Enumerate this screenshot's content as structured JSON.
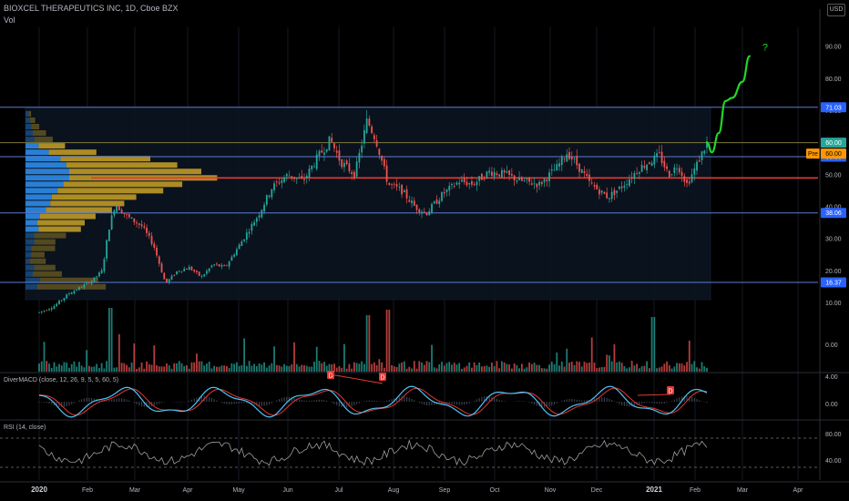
{
  "header": {
    "title": "BIOXCEL THERAPEUTICS INC, 1D, Cboe BZX",
    "vol_label": "Vol",
    "currency": "USD"
  },
  "colors": {
    "background": "#000000",
    "candle_up": "#26a69a",
    "candle_down": "#ef5350",
    "level_line": "#5b7bd5",
    "poc_line": "#e53935",
    "projection": "#22d62a",
    "vp_blue": "#2a7fd4",
    "vp_gold": "#c9a227",
    "macd_line": "#4fc3f7",
    "signal_line": "#e53935",
    "rsi_line": "#9e9e9e"
  },
  "chart_data": {
    "type": "candlestick",
    "title": "BIOXCEL THERAPEUTICS INC, 1D, Cboe BZX",
    "x_ticks": [
      "2020",
      "Feb",
      "Mar",
      "Apr",
      "May",
      "Jun",
      "Jul",
      "Aug",
      "Sep",
      "Oct",
      "Nov",
      "Dec",
      "2021",
      "Feb",
      "Mar",
      "Apr"
    ],
    "price_axis": {
      "ticks": [
        "90.00",
        "80.00",
        "70.00",
        "60.00",
        "50.00",
        "40.00",
        "30.00",
        "20.00",
        "10.00"
      ],
      "ylim": [
        5,
        96
      ]
    },
    "price_path": [
      [
        "2019-12-31",
        7
      ],
      [
        "2020-01-10",
        9
      ],
      [
        "2020-01-20",
        13
      ],
      [
        "2020-01-28",
        15
      ],
      [
        "2020-02-04",
        17
      ],
      [
        "2020-02-10",
        20
      ],
      [
        "2020-02-14",
        33
      ],
      [
        "2020-02-18",
        41
      ],
      [
        "2020-02-25",
        37
      ],
      [
        "2020-03-05",
        34
      ],
      [
        "2020-03-12",
        28
      ],
      [
        "2020-03-19",
        16
      ],
      [
        "2020-03-26",
        20
      ],
      [
        "2020-04-02",
        21
      ],
      [
        "2020-04-09",
        18
      ],
      [
        "2020-04-16",
        22
      ],
      [
        "2020-04-23",
        21
      ],
      [
        "2020-05-04",
        30
      ],
      [
        "2020-05-14",
        38
      ],
      [
        "2020-05-22",
        46
      ],
      [
        "2020-06-01",
        50
      ],
      [
        "2020-06-10",
        48
      ],
      [
        "2020-06-18",
        55
      ],
      [
        "2020-06-26",
        61
      ],
      [
        "2020-07-02",
        54
      ],
      [
        "2020-07-10",
        50
      ],
      [
        "2020-07-17",
        67
      ],
      [
        "2020-07-22",
        61
      ],
      [
        "2020-07-29",
        47
      ],
      [
        "2020-08-06",
        45
      ],
      [
        "2020-08-14",
        40
      ],
      [
        "2020-08-21",
        38
      ],
      [
        "2020-08-31",
        44
      ],
      [
        "2020-09-10",
        48
      ],
      [
        "2020-09-18",
        47
      ],
      [
        "2020-09-28",
        51
      ],
      [
        "2020-10-07",
        50
      ],
      [
        "2020-10-16",
        48
      ],
      [
        "2020-10-26",
        47
      ],
      [
        "2020-11-05",
        52
      ],
      [
        "2020-11-12",
        57
      ],
      [
        "2020-11-20",
        52
      ],
      [
        "2020-11-27",
        47
      ],
      [
        "2020-12-07",
        43
      ],
      [
        "2020-12-14",
        46
      ],
      [
        "2020-12-24",
        52
      ],
      [
        "2021-01-05",
        56
      ],
      [
        "2021-01-12",
        50
      ],
      [
        "2021-01-19",
        53
      ],
      [
        "2021-01-26",
        47
      ],
      [
        "2021-02-01",
        52
      ],
      [
        "2021-02-08",
        60
      ]
    ],
    "horizontal_lines": [
      {
        "value": 71.03,
        "label": "71.03",
        "role": "resistance"
      },
      {
        "value": 60.0,
        "label": "60.00",
        "role": "last price"
      },
      {
        "value": 55.63,
        "label": "55.63",
        "role": "level"
      },
      {
        "value": 49.0,
        "label": "",
        "role": "point of control"
      },
      {
        "value": 38.06,
        "label": "38.06",
        "role": "support"
      },
      {
        "value": 16.37,
        "label": "16.37",
        "role": "support"
      }
    ],
    "pre_market": {
      "label": "Pre",
      "value": "60.00"
    },
    "projection": {
      "path": [
        [
          "2021-02-08",
          60
        ],
        [
          "2021-02-11",
          57
        ],
        [
          "2021-02-15",
          63
        ],
        [
          "2021-02-19",
          73
        ],
        [
          "2021-02-23",
          74
        ],
        [
          "2021-03-01",
          79
        ],
        [
          "2021-03-05",
          87
        ]
      ],
      "label": "?"
    },
    "volume_profile": {
      "price_bins": [
        15,
        17,
        19,
        21,
        23,
        25,
        27,
        29,
        31,
        33,
        35,
        37,
        39,
        41,
        43,
        45,
        47,
        49,
        51,
        53,
        55,
        57,
        59,
        61,
        63,
        65,
        67,
        69
      ],
      "up_volume": [
        8,
        10,
        5,
        6,
        3,
        4,
        4,
        6,
        6,
        9,
        8,
        10,
        14,
        17,
        18,
        22,
        26,
        30,
        30,
        28,
        24,
        16,
        9,
        6,
        5,
        4,
        3,
        2
      ],
      "down_volume": [
        26,
        22,
        11,
        8,
        6,
        5,
        9,
        8,
        12,
        16,
        18,
        21,
        25,
        28,
        32,
        40,
        45,
        56,
        50,
        42,
        34,
        18,
        10,
        7,
        5,
        3,
        2,
        1
      ]
    },
    "volume_axis": {
      "ticks": [
        "0.00"
      ]
    },
    "macd": {
      "label": "DiverMACD (close, 12, 26, 9, 5, 5, 60, 5)",
      "ticks": [
        "4.00",
        "0.00"
      ],
      "divergence_marks": [
        "D",
        "D",
        "D"
      ]
    },
    "rsi": {
      "label": "RSI (14, close)",
      "ticks": [
        "80.00",
        "40.00"
      ]
    }
  }
}
